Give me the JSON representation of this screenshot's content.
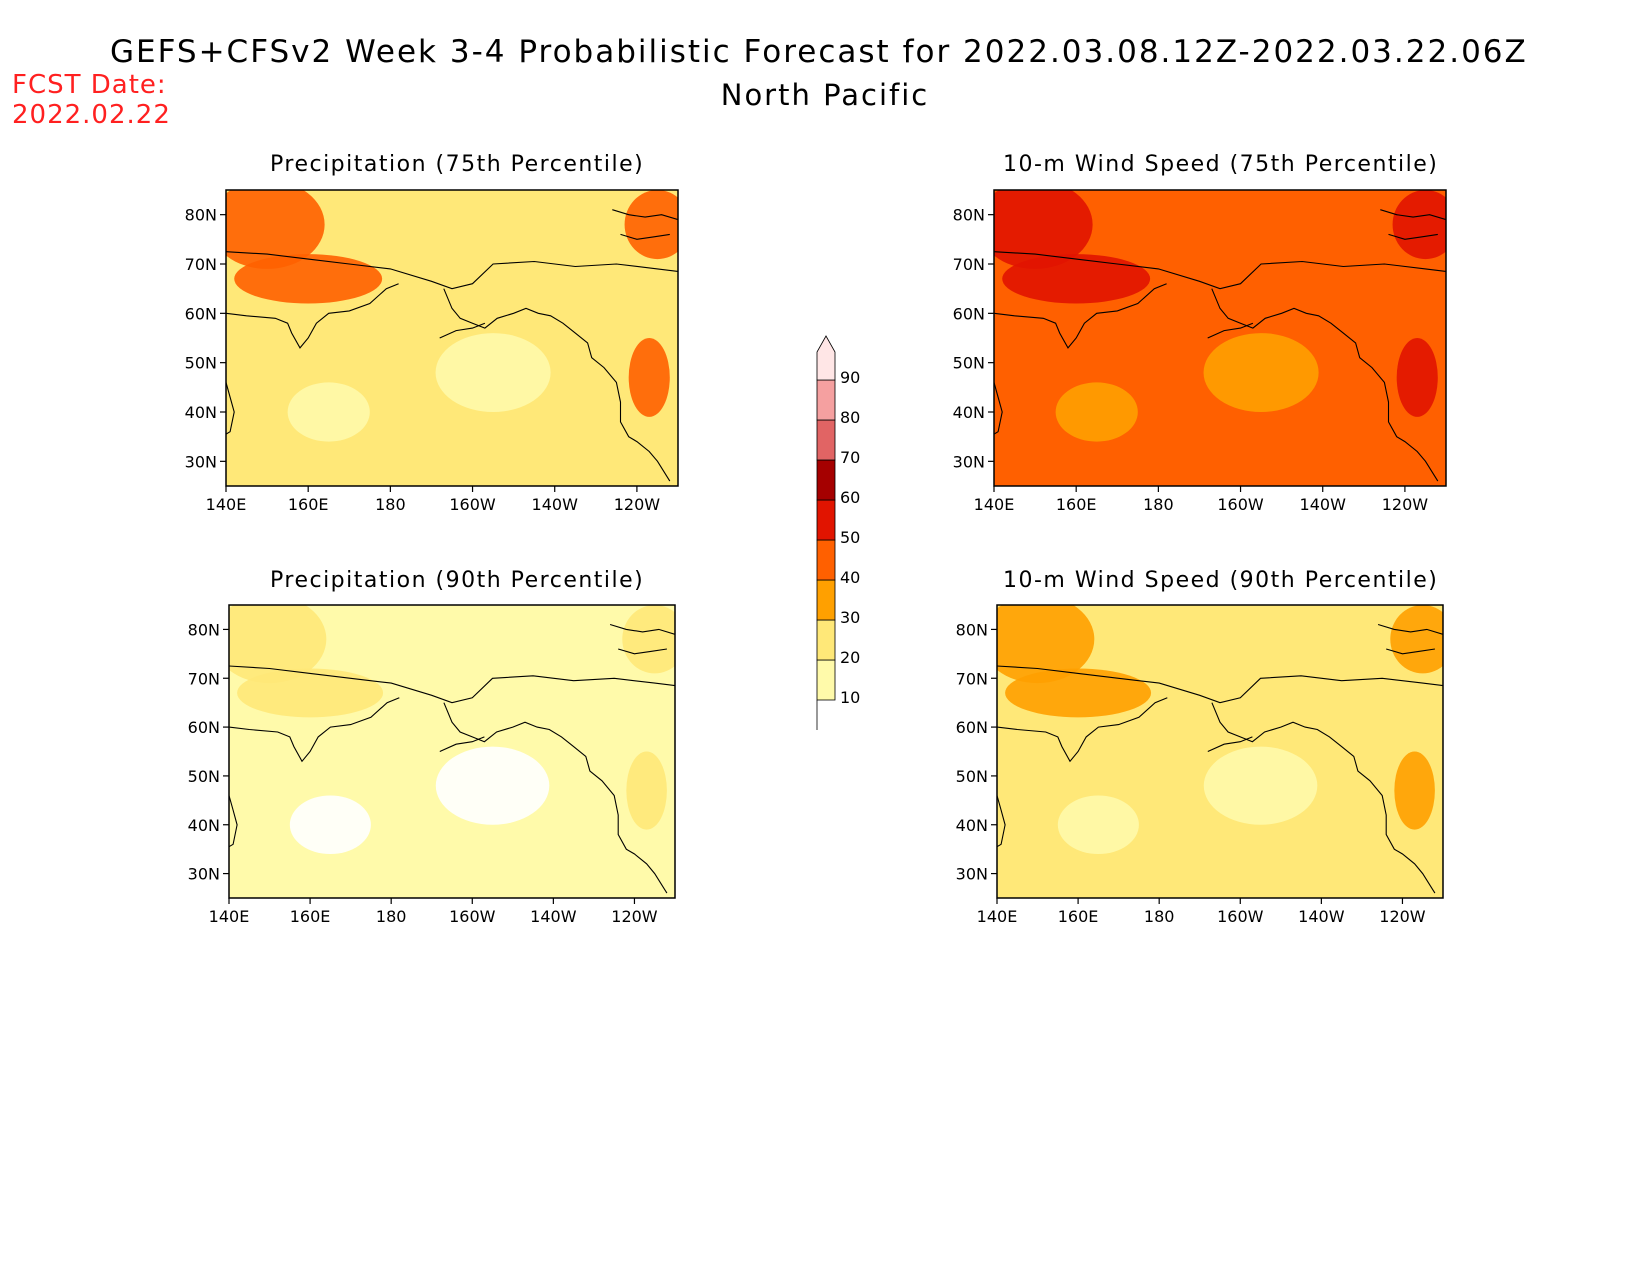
{
  "header": {
    "title": "GEFS+CFSv2 Week 3-4 Probabilistic Forecast for 2022.03.08.12Z-2022.03.22.06Z",
    "subtitle": "North Pacific",
    "fcst_label": "FCST Date:",
    "fcst_date": "2022.02.22"
  },
  "panels": [
    {
      "title": "Precipitation (75th Percentile)",
      "base_level": 20,
      "hot_level": 40
    },
    {
      "title": "10-m Wind Speed (75th Percentile)",
      "base_level": 40,
      "hot_level": 50
    },
    {
      "title": "Precipitation (90th Percentile)",
      "base_level": 10,
      "hot_level": 20
    },
    {
      "title": "10-m Wind Speed (90th Percentile)",
      "base_level": 20,
      "hot_level": 30
    }
  ],
  "axes": {
    "lat_labels": [
      "80N",
      "70N",
      "60N",
      "50N",
      "40N",
      "30N"
    ],
    "lon_labels": [
      "140E",
      "160E",
      "180",
      "160W",
      "140W",
      "120W"
    ]
  },
  "colorbar": {
    "levels": [
      "10",
      "20",
      "30",
      "40",
      "50",
      "60",
      "70",
      "80",
      "90"
    ],
    "colors": [
      "#fffaaa",
      "#ffe878",
      "#ffa000",
      "#ff6000",
      "#e11400",
      "#a50000",
      "#e16464",
      "#f5a0a0",
      "#ffe6e6"
    ]
  }
}
